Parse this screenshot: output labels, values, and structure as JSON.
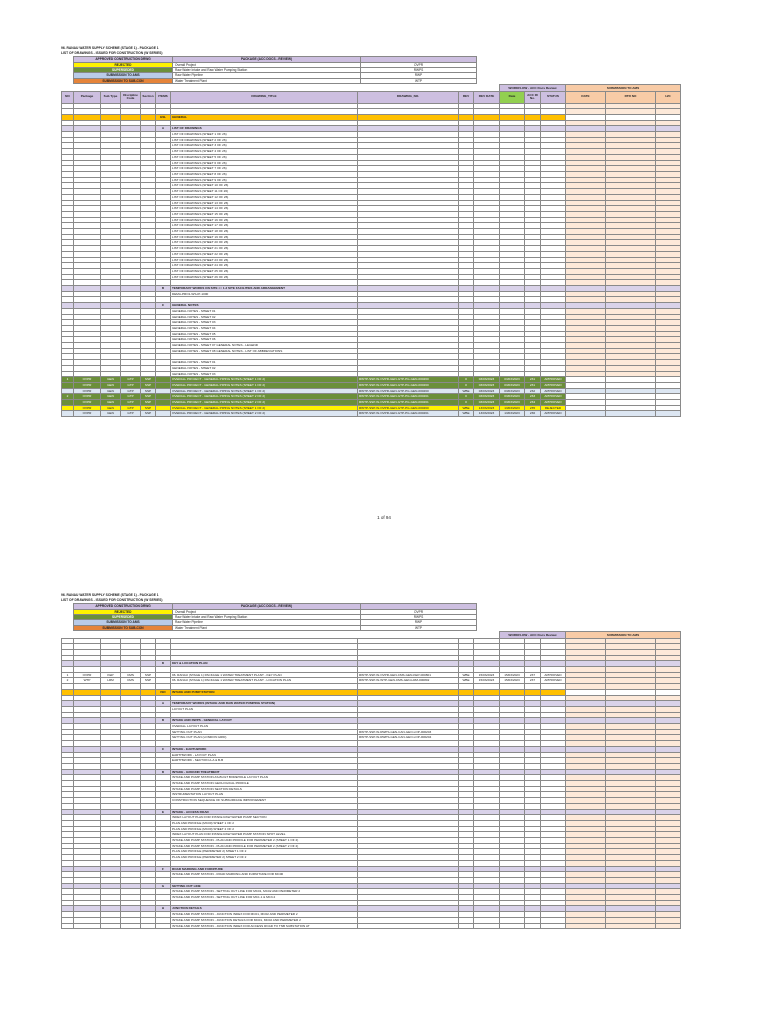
{
  "page1": {
    "header": {
      "line1": "96. RANAU WATER SUPPLY SCHEME (STAGE 1) - PACKAGE 1",
      "line2": "LIST OF DRAWINGS - ISSUED FOR CONSTRUCTION (W SERIES)"
    },
    "legend": {
      "col1_header": "APPROVED CONSTRUCTION DRWG",
      "col2_header": "PACKAGE (ACC DOCS - REVIEW)",
      "rows": [
        {
          "status": "REJECTED",
          "package": "Overall Project",
          "code": "OVPR",
          "cls": "y"
        },
        {
          "status": "SUPERSEDED",
          "package": "Raw Water Intake and Raw Water Pumping Station",
          "code": "RWPS",
          "cls": "g"
        },
        {
          "status": "SUBMISSION TO AMS",
          "package": "Raw Water Pipeline",
          "code": "RWP",
          "cls": "b"
        },
        {
          "status": "SUBMISSION TO SUB-CON",
          "package": "Water Treatment Plant",
          "code": "WTP",
          "cls": "o"
        }
      ]
    },
    "workflow_label": "WORKFLOW - ACC Docs Review",
    "submission_label": "SUBMISSION TO AMS",
    "columns": [
      "NO",
      "Package",
      "Sub Type",
      "Discipline Code",
      "Section",
      "ITEMS",
      "DRAWING_TITLE",
      "DRAWING_NO.",
      "REV",
      "REV DATE",
      "Date",
      "ACC ID No.",
      "STATUS",
      "DATE",
      "DTR NO",
      "H/C"
    ],
    "rows": [
      {
        "t": "blank"
      },
      {
        "t": "blank"
      },
      {
        "t": "band",
        "section": "GSL",
        "items": "GENERAL"
      },
      {
        "t": "blank"
      },
      {
        "t": "sect",
        "items": "A",
        "title": "LIST OF DRAWINGS"
      },
      {
        "t": "text",
        "title": "LIST OF DRAWINGS (SHEET 1 OF 26)"
      },
      {
        "t": "text",
        "title": "LIST OF DRAWINGS (SHEET 2 OF 26)"
      },
      {
        "t": "text",
        "title": "LIST OF DRAWINGS (SHEET 3 OF 26)"
      },
      {
        "t": "text",
        "title": "LIST OF DRAWINGS (SHEET 4 OF 26)"
      },
      {
        "t": "text",
        "title": "LIST OF DRAWINGS (SHEET 5 OF 26)"
      },
      {
        "t": "text",
        "title": "LIST OF DRAWINGS (SHEET 6 OF 26)"
      },
      {
        "t": "text",
        "title": "LIST OF DRAWINGS (SHEET 7 OF 26)"
      },
      {
        "t": "text",
        "title": "LIST OF DRAWINGS (SHEET 8 OF 26)"
      },
      {
        "t": "text",
        "title": "LIST OF DRAWINGS (SHEET 9 OF 26)"
      },
      {
        "t": "text",
        "title": "LIST OF DRAWINGS (SHEET 10 OF 26)"
      },
      {
        "t": "text",
        "title": "LIST OF DRAWINGS (SHEET 11 OF 26)"
      },
      {
        "t": "text",
        "title": "LIST OF DRAWINGS (SHEET 12 OF 26)"
      },
      {
        "t": "text",
        "title": "LIST OF DRAWINGS (SHEET 13 OF 26)"
      },
      {
        "t": "text",
        "title": "LIST OF DRAWINGS (SHEET 14 OF 26)"
      },
      {
        "t": "text",
        "title": "LIST OF DRAWINGS (SHEET 15 OF 26)"
      },
      {
        "t": "text",
        "title": "LIST OF DRAWINGS (SHEET 16 OF 26)"
      },
      {
        "t": "text",
        "title": "LIST OF DRAWINGS (SHEET 17 OF 26)"
      },
      {
        "t": "text",
        "title": "LIST OF DRAWINGS (SHEET 18 OF 26)"
      },
      {
        "t": "text",
        "title": "LIST OF DRAWINGS (SHEET 19 OF 26)"
      },
      {
        "t": "text",
        "title": "LIST OF DRAWINGS (SHEET 20 OF 26)"
      },
      {
        "t": "text",
        "title": "LIST OF DRAWINGS (SHEET 21 OF 26)"
      },
      {
        "t": "text",
        "title": "LIST OF DRAWINGS (SHEET 22 OF 26)"
      },
      {
        "t": "text",
        "title": "LIST OF DRAWINGS (SHEET 23 OF 26)"
      },
      {
        "t": "text",
        "title": "LIST OF DRAWINGS (SHEET 24 OF 26)"
      },
      {
        "t": "text",
        "title": "LIST OF DRAWINGS (SHEET 25 OF 26)"
      },
      {
        "t": "text",
        "title": "LIST OF DRAWINGS (SHEET 26 OF 26)"
      },
      {
        "t": "blank"
      },
      {
        "t": "sect",
        "items": "B",
        "title": "TEMPORARY WORKS ON SITE <= 1.2 SITE FACILITIES AND ARRANGEMENT"
      },
      {
        "t": "text",
        "title": "DEMA-PRO1-WS-IP-1000"
      },
      {
        "t": "blank"
      },
      {
        "t": "sect",
        "items": "C",
        "title": "GENERAL NOTES"
      },
      {
        "t": "text",
        "title": "GENERAL NOTES - SHEET 01"
      },
      {
        "t": "text",
        "title": "GENERAL NOTES - SHEET 02"
      },
      {
        "t": "text",
        "title": "GENERAL NOTES - SHEET 03"
      },
      {
        "t": "text",
        "title": "GENERAL NOTES - SHEET 04"
      },
      {
        "t": "text",
        "title": "GENERAL NOTES - SHEET 05"
      },
      {
        "t": "text",
        "title": "GENERAL NOTES - SHEET 06"
      },
      {
        "t": "text",
        "title": "GENERAL NOTES - SHEET 07 GENERAL NOTES - LEGEND"
      },
      {
        "t": "text",
        "title": "GENERAL NOTES - SHEET 08 GENERAL NOTES - LIST OF ABBREVIATIONS"
      },
      {
        "t": "blank"
      },
      {
        "t": "text",
        "title": "GENERAL NOTES - SHEET 01"
      },
      {
        "t": "text",
        "title": "GENERAL NOTES - SHEET 02"
      },
      {
        "t": "text",
        "title": "GENERAL NOTES - SHEET 03"
      },
      {
        "t": "green",
        "no": "1",
        "pkg": "OVPR",
        "sub": "GEN",
        "disc": "GTP",
        "sec": "SSP",
        "title": "OVERALL PROJECT - GENERAL PIPING NOTES (SHEET 1 OF 2)",
        "dwg": "RWTP-SSP-W-OVPR-GEN-GTP-PG-GEN-000260",
        "rev": "0",
        "revdate": "03/03/2023",
        "date": "03/03/2023",
        "acc": "231",
        "status": "APPROVED"
      },
      {
        "t": "green",
        "pkg": "OVPR",
        "sub": "GEN",
        "disc": "GTP",
        "sec": "SSP",
        "title": "OVERALL PROJECT - GENERAL PIPING NOTES (SHEET 1 OF 2)",
        "dwg": "RWTP-SSP-W-OVPR-GEN-GTP-PG-GEN-000260",
        "rev": "0",
        "revdate": "03/03/2023",
        "date": "03/03/2023",
        "acc": "231",
        "status": "APPROVED"
      },
      {
        "t": "bluer",
        "pkg": "OVPR",
        "sub": "GEN",
        "disc": "GTP",
        "sec": "SSP",
        "title": "OVERALL PROJECT - GENERAL PIPING NOTES (SHEET 1 OF 2)",
        "dwg": "RWTP-SSP-W-OVPR-GEN-GTP-PG-GEN-000260",
        "rev": "WBE",
        "revdate": "03/03/2023",
        "date": "03/03/2023",
        "acc": "232",
        "status": "APPROVED"
      },
      {
        "t": "green",
        "no": "2",
        "pkg": "OVPR",
        "sub": "GEN",
        "disc": "GTP",
        "sec": "SSP",
        "title": "OVERALL PROJECT - GENERAL PIPING NOTES (SHEET 2 OF 2)",
        "dwg": "RWTP-SSP-W-OVPR-GEN-GTP-PG-GEN-000261",
        "rev": "0",
        "revdate": "03/03/2023",
        "date": "03/03/2023",
        "acc": "233",
        "status": "APPROVED"
      },
      {
        "t": "green",
        "pkg": "OVPR",
        "sub": "GEN",
        "disc": "GTP",
        "sec": "SSP",
        "title": "OVERALL PROJECT - GENERAL PIPING NOTES (SHEET 2 OF 2)",
        "dwg": "RWTP-SSP-W-OVPR-GEN-GTP-PG-GEN-000261",
        "rev": "0",
        "revdate": "03/03/2023",
        "date": "03/03/2023",
        "acc": "234",
        "status": "APPROVED"
      },
      {
        "t": "yellow",
        "pkg": "OVPR",
        "sub": "GEN",
        "disc": "GTP",
        "sec": "SSP",
        "title": "OVERALL PROJECT - GENERAL PIPING NOTES (SHEET 1 OF 2)",
        "dwg": "RWTP-SSP-W-OVPR-GEN-GTP-PG-GEN-000260",
        "rev": "WBE",
        "revdate": "13/03/2023",
        "date": "13/03/2023",
        "acc": "235",
        "status": "REJECTED"
      },
      {
        "t": "bluer",
        "pkg": "OVPR",
        "sub": "GEN",
        "disc": "GTP",
        "sec": "SSP",
        "title": "OVERALL PROJECT - GENERAL PIPING NOTES (SHEET 2 OF 2)",
        "dwg": "RWTP-SSP-W-OVPR-GEN-GTP-PG-GEN-000261",
        "rev": "WBE",
        "revdate": "13/03/2023",
        "date": "13/03/2023",
        "acc": "236",
        "status": "APPROVED"
      }
    ],
    "page_number": "1 of 94"
  },
  "page2": {
    "header": {
      "line1": "96. RANAU WATER SUPPLY SCHEME (STAGE 1) - PACKAGE 1",
      "line2": "LIST OF DRAWINGS - ISSUED FOR CONSTRUCTION (W SERIES)"
    },
    "legend": {
      "col1_header": "APPROVED CONSTRUCTION DRWG",
      "col2_header": "PACKAGE (ACC DOCS - REVIEW)",
      "rows": [
        {
          "status": "REJECTED",
          "package": "Overall Project",
          "code": "OVPR",
          "cls": "y"
        },
        {
          "status": "SUPERSEDED",
          "package": "Raw Water Intake and Raw Water Pumping Station",
          "code": "RWPS",
          "cls": "g"
        },
        {
          "status": "SUBMISSION TO AMS",
          "package": "Raw Water Pipeline",
          "code": "RWP",
          "cls": "b"
        },
        {
          "status": "SUBMISSION TO SUB-CON",
          "package": "Water Treatment Plant",
          "code": "WTP",
          "cls": "o"
        }
      ]
    },
    "workflow_label": "WORKFLOW - ACC Docs Review",
    "submission_label": "SUBMISSION TO AMS",
    "rows": [
      {
        "t": "blank"
      },
      {
        "t": "blank"
      },
      {
        "t": "blank"
      },
      {
        "t": "blank"
      },
      {
        "t": "sect",
        "items": "D",
        "title": "KEY & LOCATION PLAN"
      },
      {
        "t": "blank"
      },
      {
        "t": "data",
        "no": "1",
        "pkg": "OVPR",
        "sub": "KEP",
        "disc": "CMS",
        "sec": "SSP",
        "title": "96. RANAU (STAGE 1) PACKAGE 1 WATER TREATMENT PLANT - KEY PLAN",
        "dwg": "RWTP-SSP-W-OVPR-GEN-CMS-GEN-KEP-000801",
        "rev": "WBE",
        "revdate": "15/03/2023",
        "date": "15/03/2023",
        "acc": "237",
        "status": "APPROVED"
      },
      {
        "t": "data",
        "no": "2",
        "pkg": "WTP",
        "sub": "LRM",
        "disc": "CMS",
        "sec": "SSP",
        "title": "96. RANAU (STAGE 1) PACKAGE 1 WATER TREATMENT PLANT - LOCATION PLAN",
        "dwg": "RWTP-SSP-W-WTP-GEN-CMS-GEN-LRM-000802",
        "rev": "WBE",
        "revdate": "15/03/2023",
        "date": "15/03/2023",
        "acc": "237",
        "status": "APPROVED"
      },
      {
        "t": "blank"
      },
      {
        "t": "band",
        "section": "ISD",
        "items": "INTAKE AND PUMP STATION"
      },
      {
        "t": "blank"
      },
      {
        "t": "sect",
        "items": "A",
        "title": "TEMPORARY WORKS (INTAKE AND RAW WATER PUMPING STATION)"
      },
      {
        "t": "text",
        "title": "LAYOUT PLAN"
      },
      {
        "t": "blank"
      },
      {
        "t": "sect",
        "items": "B",
        "title": "INTAKE AND RWPS - GENERAL LAYOUT"
      },
      {
        "t": "text",
        "title": "OVERALL LAYOUT PLAN"
      },
      {
        "t": "text",
        "title": "SETTING OUT PLAN",
        "dwg": "RWTP-SSP-W-RWPS-GEN-CAN-GEO-LOP-000203"
      },
      {
        "t": "text",
        "title": "SETTING OUT PLAN (LONDON GRID)",
        "dwg": "RWTP-SSP-W-RWPS-GEN-CAN-GEO-LOP-000204"
      },
      {
        "t": "blank"
      },
      {
        "t": "sect",
        "items": "C",
        "title": "INTAKE - EARTHWORK"
      },
      {
        "t": "text",
        "title": "EARTHWORK - LAYOUT PLAN"
      },
      {
        "t": "text",
        "title": "EARTHWORK - SECTION A-A & B-B"
      },
      {
        "t": "blank"
      },
      {
        "t": "sect",
        "items": "D",
        "title": "INTAKE - GROUND TREATMENT"
      },
      {
        "t": "text",
        "title": "INTAKE AND PUMP STATION AS-BUILT BOREHOLE LAYOUT PLAN"
      },
      {
        "t": "text",
        "title": "INTAKE AND PUMP STATION GEOLOGICAL PROFILE"
      },
      {
        "t": "text",
        "title": "INTAKE AND PUMP STATION SECTION DETAILS"
      },
      {
        "t": "text",
        "title": "INSTRUMENTATION LAYOUT PLAN"
      },
      {
        "t": "text",
        "title": "CONSTRUCTION SEQUENCE OF SUBSURFACE IMPROVEMENT"
      },
      {
        "t": "blank"
      },
      {
        "t": "sect",
        "items": "E",
        "title": "INTAKE - ACCESS ROAD"
      },
      {
        "t": "text",
        "title": "INDEX LAYOUT PLAN FOR INTAKE RAW WATER PUMP SECTION"
      },
      {
        "t": "text",
        "title": "PLAN AND PROFILE (MC00) SHEET 1 OF 2"
      },
      {
        "t": "text",
        "title": "PLAN AND PROFILE (MC00) SHEET 2 OF 2"
      },
      {
        "t": "text",
        "title": "INDEX LAYOUT PLAN FOR INTAKE RAW WATER PUMP STATION SPOT LEVEL"
      },
      {
        "t": "text",
        "title": "INTAKE AND PUMP STATION - PLAN AND PROFILE FOR PERIMETER 2 (SHEET 1 OF 2)"
      },
      {
        "t": "text",
        "title": "INTAKE AND PUMP STATION - PLAN AND PROFILE FOR PERIMETER 2 (SHEET 2 OF 2)"
      },
      {
        "t": "text",
        "title": "PLAN AND PROFILE (PERIMETER 2) SHEET 1 OF 2"
      },
      {
        "t": "text",
        "title": "PLAN AND PROFILE (PERIMETER 2) SHEET 2 OF 2"
      },
      {
        "t": "blank"
      },
      {
        "t": "sect",
        "items": "F",
        "title": "ROAD MARKING AND FURNITURE"
      },
      {
        "t": "text",
        "title": "INTAKE AND PUMP STATION - ROAD MARKING AND FURNITURE FOR MC00"
      },
      {
        "t": "blank"
      },
      {
        "t": "sect",
        "items": "G",
        "title": "SETTING OUT LINE"
      },
      {
        "t": "text",
        "title": "INTAKE AND PUMP STATION - SETTING OUT LINE FOR MC01, MC02 AND PERIMETER 2"
      },
      {
        "t": "text",
        "title": "INTAKE AND PUMP STATION - SETTING OUT LINE FOR MC1.1 & MC3.2"
      },
      {
        "t": "blank"
      },
      {
        "t": "sect",
        "items": "H",
        "title": "JUNCTION DETAILS"
      },
      {
        "t": "text",
        "title": "INTAKE AND PUMP STATION - JUNCTION INDEX FOR MC01, MC02 AND PERIMETER 2"
      },
      {
        "t": "text",
        "title": "INTAKE AND PUMP STATION - JUNCTION DETAILS FOR MC01, MC02 AND PERIMETER 2"
      },
      {
        "t": "text",
        "title": "INTAKE AND PUMP STATION - JUNCTION INDEX FOR ACCESS ROAD TO TNB SUBSTATION AT"
      }
    ]
  }
}
